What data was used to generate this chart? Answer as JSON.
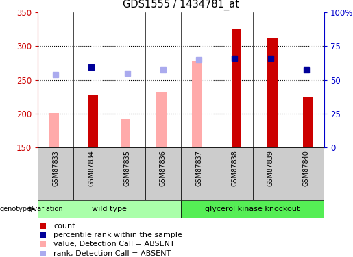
{
  "title": "GDS1555 / 1434781_at",
  "samples": [
    "GSM87833",
    "GSM87834",
    "GSM87835",
    "GSM87836",
    "GSM87837",
    "GSM87838",
    "GSM87839",
    "GSM87840"
  ],
  "count_values": [
    null,
    227,
    null,
    null,
    null,
    325,
    312,
    224
  ],
  "pink_values": [
    201,
    null,
    193,
    232,
    278,
    null,
    null,
    null
  ],
  "blue_rank_values": [
    null,
    269,
    null,
    null,
    null,
    282,
    282,
    265
  ],
  "light_blue_values": [
    258,
    null,
    260,
    265,
    280,
    null,
    null,
    null
  ],
  "ymin": 150,
  "ymax": 350,
  "yticks_left": [
    150,
    200,
    250,
    300,
    350
  ],
  "yticks_right_vals": [
    0,
    25,
    50,
    75,
    100
  ],
  "y_right_labels": [
    "0",
    "25",
    "50",
    "75",
    "100%"
  ],
  "wild_type_label": "wild type",
  "knockout_label": "glycerol kinase knockout",
  "genotype_label": "genotype/variation",
  "legend_entries": [
    {
      "label": "count",
      "color": "#cc0000"
    },
    {
      "label": "percentile rank within the sample",
      "color": "#000099"
    },
    {
      "label": "value, Detection Call = ABSENT",
      "color": "#ffaaaa"
    },
    {
      "label": "rank, Detection Call = ABSENT",
      "color": "#aaaaee"
    }
  ],
  "count_color": "#cc0000",
  "pink_color": "#ffaaaa",
  "blue_color": "#000099",
  "light_blue_color": "#aaaaee",
  "left_axis_color": "#cc0000",
  "right_axis_color": "#0000cc",
  "bg_wildtype": "#aaffaa",
  "bg_knockout": "#55ee55",
  "bg_xtick_even": "#cccccc",
  "bg_xtick_odd": "#cccccc"
}
